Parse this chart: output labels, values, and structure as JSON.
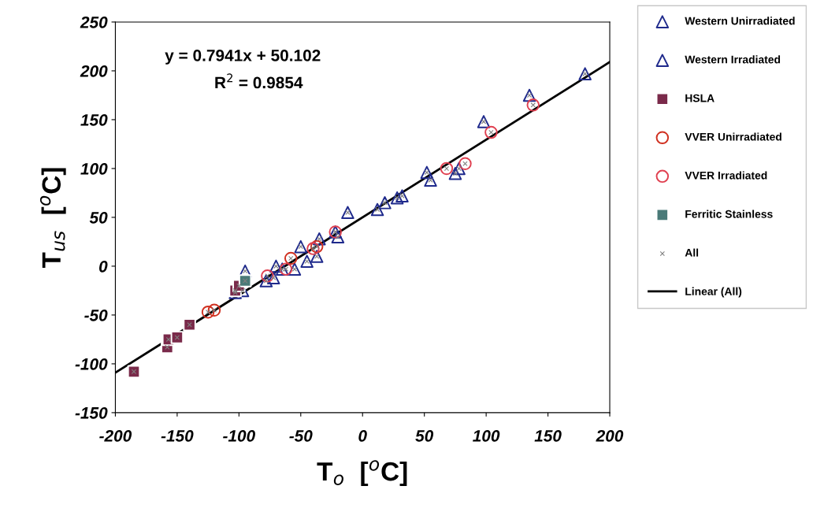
{
  "chart_data": {
    "type": "scatter",
    "xlabel": "T$_{o}$  [$^{o}$C]",
    "ylabel": "T$_{us}$  [$^{o}$C]",
    "xlim": [
      -200,
      200
    ],
    "xticks": [
      -200,
      -150,
      -100,
      -50,
      0,
      50,
      100,
      150,
      200
    ],
    "ylim": [
      -150,
      250
    ],
    "yticks": [
      -150,
      -100,
      -50,
      0,
      50,
      100,
      150,
      200,
      250
    ],
    "grid": false,
    "legend": "right",
    "annotations": [
      "y = 0.7941x + 50.102",
      "R$^{2}$ = 0.9854"
    ],
    "series": [
      {
        "name": "Western Unirradiated",
        "color": "#1f2a8c",
        "marker": "triangle",
        "x": [
          -95,
          -97,
          -78,
          -72,
          -70,
          -55,
          -50,
          -45,
          -37,
          -35,
          -20,
          -12,
          12,
          18,
          28,
          32,
          52,
          55,
          75,
          78,
          98,
          135,
          180
        ],
        "values": [
          -5,
          -25,
          -15,
          -12,
          0,
          -3,
          20,
          5,
          10,
          28,
          30,
          55,
          58,
          65,
          70,
          72,
          96,
          88,
          95,
          100,
          148,
          175,
          197
        ]
      },
      {
        "name": "Western Irradiated",
        "color": "#1f2a8c",
        "marker": "triangle",
        "x": [
          -103,
          -65,
          -22
        ],
        "values": [
          -27,
          -3,
          35
        ]
      },
      {
        "name": "HSLA",
        "color": "#7a2a4a",
        "marker": "square",
        "x": [
          -185,
          -158,
          -157,
          -150,
          -140,
          -103,
          -100
        ],
        "values": [
          -108,
          -83,
          -75,
          -73,
          -60,
          -25,
          -20
        ]
      },
      {
        "name": "VVER Unirradiated",
        "color": "#d03020",
        "marker": "circle",
        "x": [
          -125,
          -120,
          -58,
          -37
        ],
        "values": [
          -47,
          -45,
          8,
          20
        ]
      },
      {
        "name": "VVER Irradiated",
        "color": "#e04050",
        "marker": "circle",
        "x": [
          -77,
          -62,
          -40,
          -22,
          68,
          83,
          104,
          138
        ],
        "values": [
          -10,
          -3,
          18,
          35,
          100,
          105,
          137,
          165
        ]
      },
      {
        "name": "Ferritic Stainless",
        "color": "#4a7a78",
        "marker": "square",
        "x": [
          -95
        ],
        "values": [
          -15
        ]
      },
      {
        "name": "All",
        "color": "#808080",
        "marker": "cross",
        "x": [
          -95,
          -97,
          -78,
          -72,
          -70,
          -55,
          -50,
          -45,
          -37,
          -35,
          -20,
          -12,
          12,
          18,
          28,
          32,
          52,
          55,
          75,
          78,
          98,
          135,
          180,
          -103,
          -65,
          -22,
          -185,
          -158,
          -157,
          -150,
          -140,
          -103,
          -100,
          -125,
          -120,
          -58,
          -37,
          -77,
          -62,
          -40,
          -22,
          68,
          83,
          104,
          138,
          -95
        ],
        "values": [
          -5,
          -25,
          -15,
          -12,
          0,
          -3,
          20,
          5,
          10,
          28,
          30,
          55,
          58,
          65,
          70,
          72,
          96,
          88,
          95,
          100,
          148,
          175,
          197,
          -27,
          -3,
          35,
          -108,
          -83,
          -75,
          -73,
          -60,
          -25,
          -20,
          -47,
          -45,
          8,
          20,
          -10,
          -3,
          18,
          35,
          100,
          105,
          137,
          165,
          -15
        ]
      },
      {
        "name": "Linear (All)",
        "type": "line",
        "color": "#000000",
        "marker": "none",
        "x": [
          -200,
          200
        ],
        "values": [
          -109,
          209
        ]
      }
    ]
  }
}
